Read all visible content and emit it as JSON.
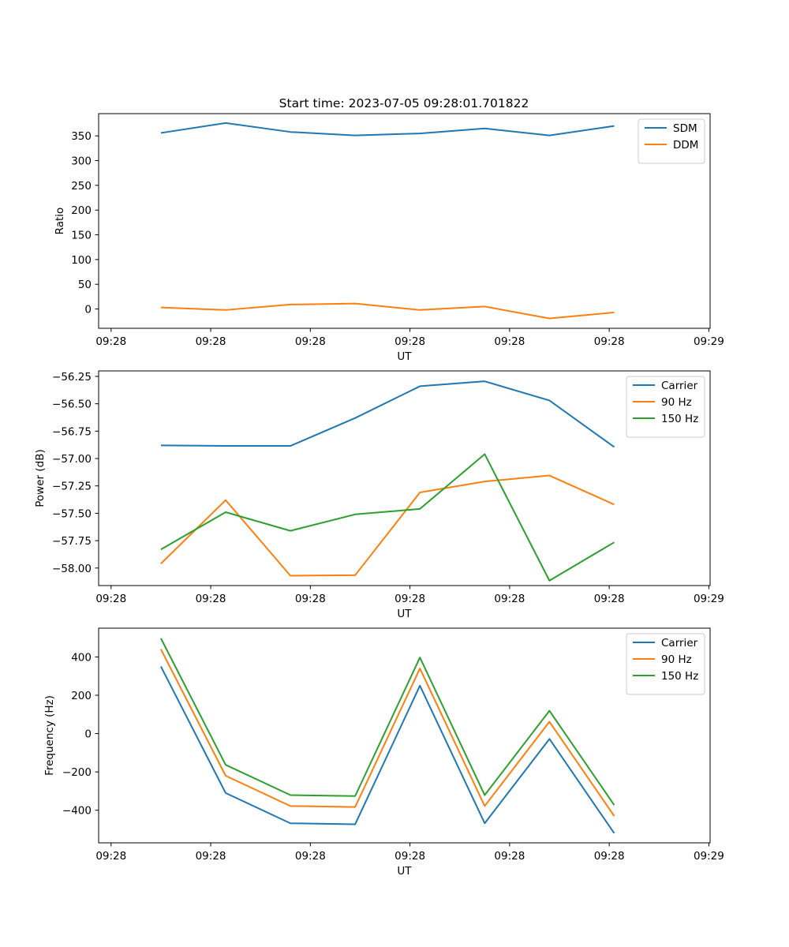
{
  "figure": {
    "title": "Start time: 2023-07-05 09:28:01.701822"
  },
  "chart_data": [
    {
      "type": "line",
      "xlabel": "UT",
      "ylabel": "Ratio",
      "x_tick_labels": [
        "09:28",
        "09:28",
        "09:28",
        "09:28",
        "09:28",
        "09:28",
        "09:29"
      ],
      "x_tick_positions": [
        0,
        1,
        2,
        3,
        4,
        5,
        6
      ],
      "xlim": [
        -0.125,
        6.0125
      ],
      "y_ticks": [
        0,
        50,
        100,
        150,
        200,
        250,
        300,
        350
      ],
      "ylim": [
        -39,
        395
      ],
      "legend": "upper right",
      "x": [
        0.5,
        1.15,
        1.8,
        2.45,
        3.1,
        3.75,
        4.4,
        5.05
      ],
      "series": [
        {
          "name": "SDM",
          "color": "#1f77b4",
          "values": [
            356,
            376,
            358,
            351,
            355,
            365,
            351,
            370
          ]
        },
        {
          "name": "DDM",
          "color": "#ff7f0e",
          "values": [
            3,
            -2,
            9,
            11,
            -2,
            5,
            -19,
            -7
          ]
        }
      ]
    },
    {
      "type": "line",
      "xlabel": "UT",
      "ylabel": "Power (dB)",
      "x_tick_labels": [
        "09:28",
        "09:28",
        "09:28",
        "09:28",
        "09:28",
        "09:28",
        "09:29"
      ],
      "x_tick_positions": [
        0,
        1,
        2,
        3,
        4,
        5,
        6
      ],
      "xlim": [
        -0.125,
        6.0125
      ],
      "y_ticks": [
        -58.0,
        -57.75,
        -57.5,
        -57.25,
        -57.0,
        -56.75,
        -56.5,
        -56.25
      ],
      "y_tick_labels": [
        "−58.00",
        "−57.75",
        "−57.50",
        "−57.25",
        "−57.00",
        "−56.75",
        "−56.50",
        "−56.25"
      ],
      "ylim": [
        -58.16,
        -56.2
      ],
      "legend": "upper right",
      "x": [
        0.5,
        1.15,
        1.8,
        2.45,
        3.1,
        3.75,
        4.4,
        5.05
      ],
      "series": [
        {
          "name": "Carrier",
          "color": "#1f77b4",
          "values": [
            -56.88,
            -56.885,
            -56.885,
            -56.63,
            -56.34,
            -56.295,
            -56.47,
            -56.895
          ]
        },
        {
          "name": "90 Hz",
          "color": "#ff7f0e",
          "values": [
            -57.96,
            -57.38,
            -58.07,
            -58.065,
            -57.31,
            -57.21,
            -57.155,
            -57.42
          ]
        },
        {
          "name": "150 Hz",
          "color": "#2ca02c",
          "values": [
            -57.83,
            -57.49,
            -57.66,
            -57.51,
            -57.46,
            -56.96,
            -58.115,
            -57.765
          ]
        }
      ]
    },
    {
      "type": "line",
      "xlabel": "UT",
      "ylabel": "Frequency (Hz)",
      "x_tick_labels": [
        "09:28",
        "09:28",
        "09:28",
        "09:28",
        "09:28",
        "09:28",
        "09:29"
      ],
      "x_tick_positions": [
        0,
        1,
        2,
        3,
        4,
        5,
        6
      ],
      "xlim": [
        -0.125,
        6.0125
      ],
      "y_ticks": [
        -400,
        -200,
        0,
        200,
        400
      ],
      "y_tick_labels": [
        "−400",
        "−200",
        "0",
        "200",
        "400"
      ],
      "ylim": [
        -570,
        550
      ],
      "legend": "upper right",
      "x": [
        0.5,
        1.15,
        1.8,
        2.45,
        3.1,
        3.75,
        4.4,
        5.05
      ],
      "series": [
        {
          "name": "Carrier",
          "color": "#1f77b4",
          "values": [
            350,
            -310,
            -468,
            -473,
            250,
            -468,
            -28,
            -520
          ]
        },
        {
          "name": "90 Hz",
          "color": "#ff7f0e",
          "values": [
            440,
            -220,
            -378,
            -383,
            340,
            -378,
            62,
            -430
          ]
        },
        {
          "name": "150 Hz",
          "color": "#2ca02c",
          "values": [
            497,
            -163,
            -321,
            -326,
            397,
            -321,
            119,
            -373
          ]
        }
      ]
    }
  ]
}
